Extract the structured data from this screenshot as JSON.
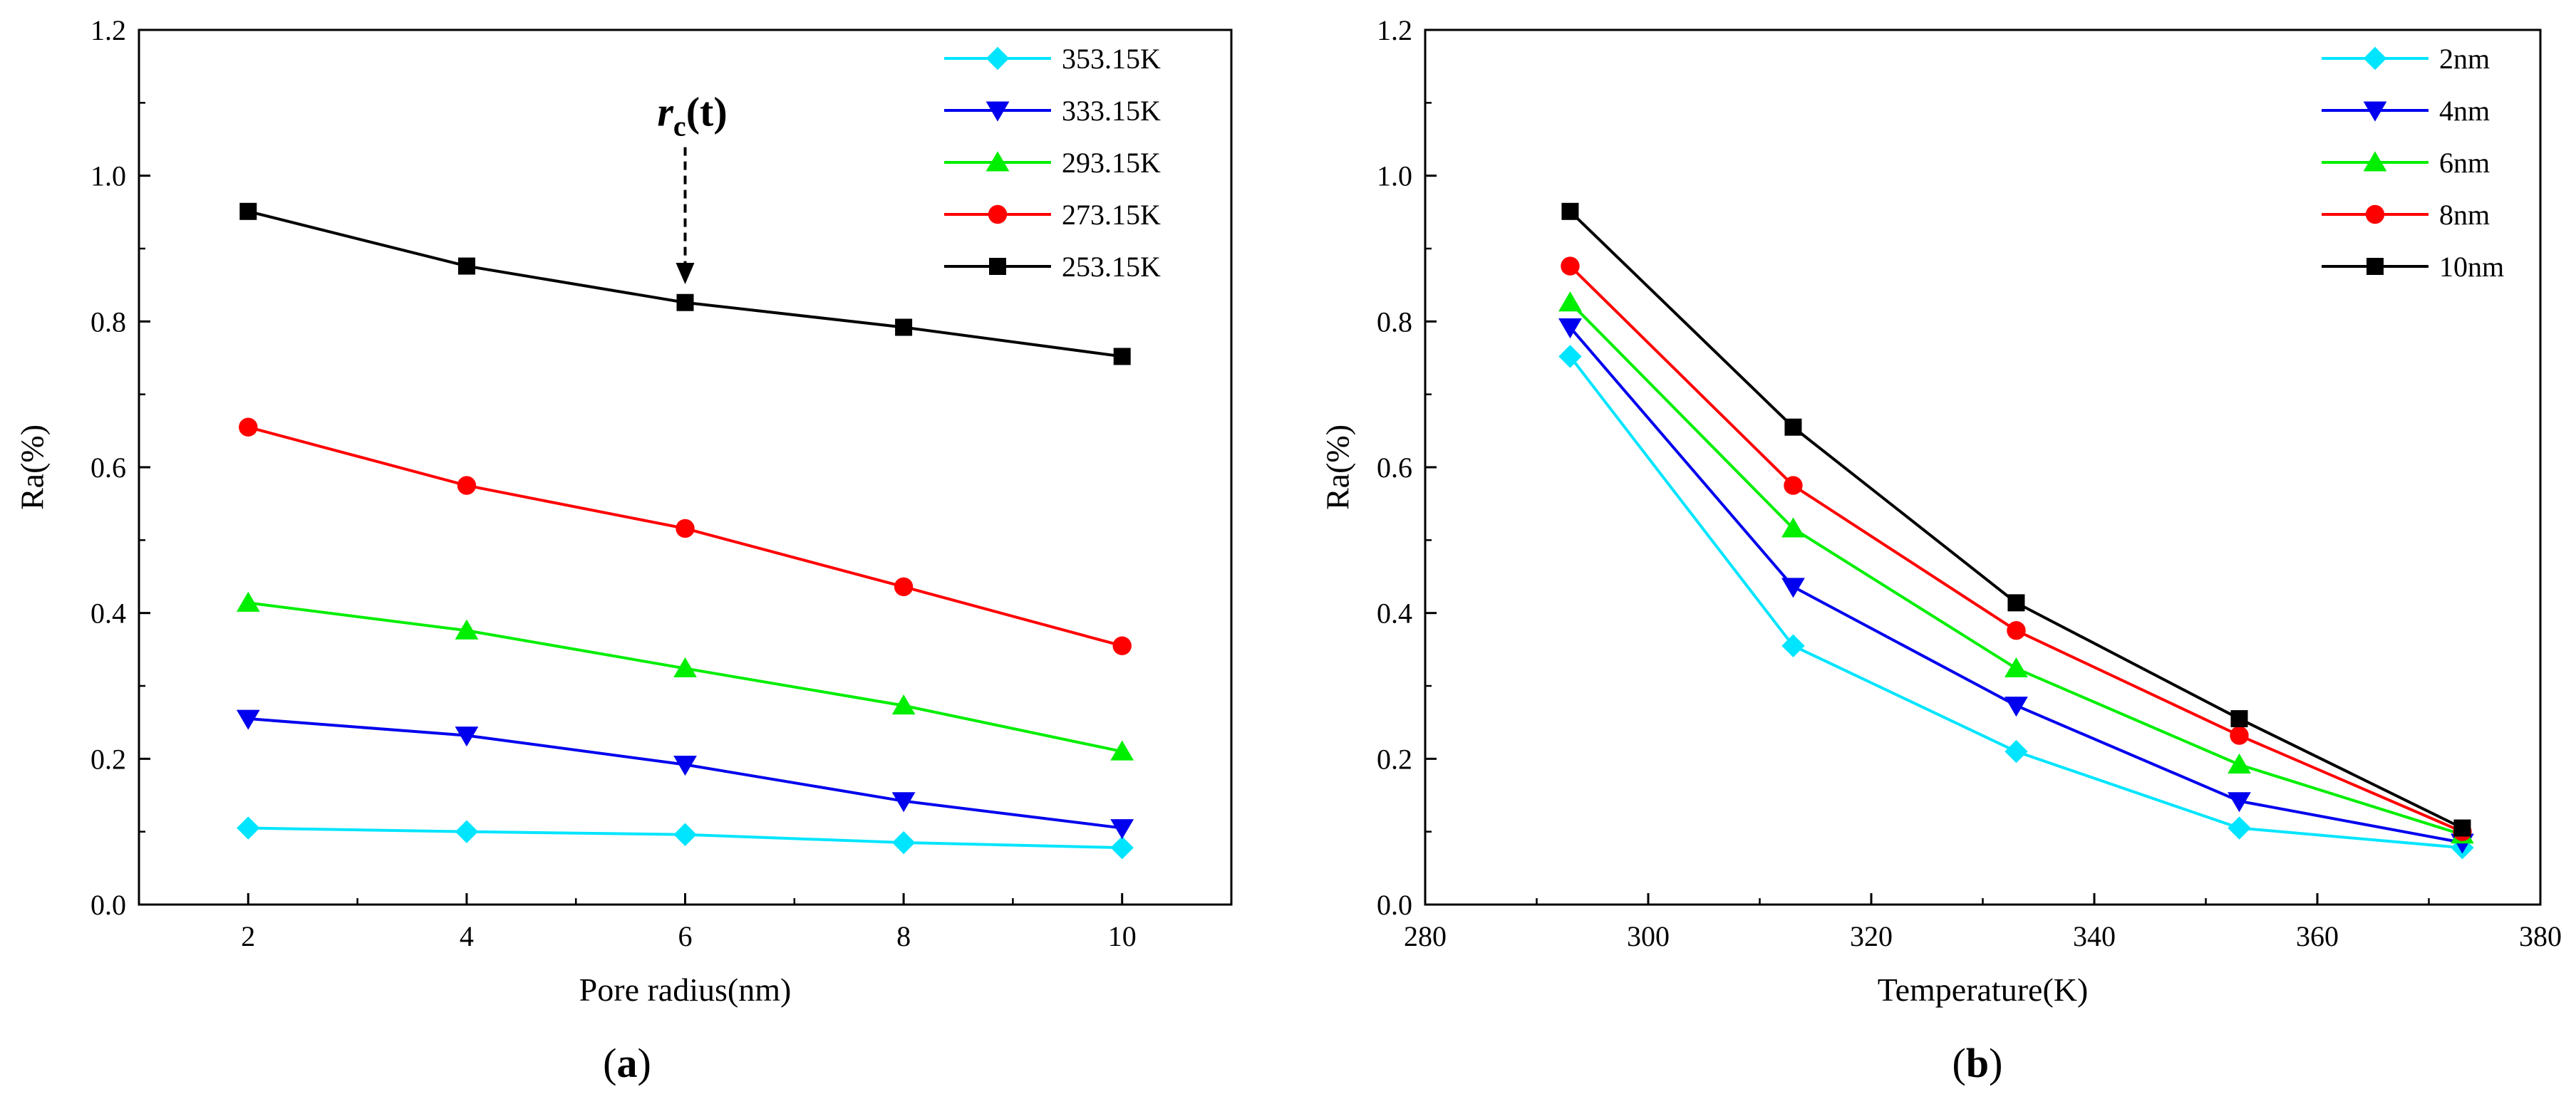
{
  "chart_data": [
    {
      "type": "line",
      "panel_label": "a",
      "xlabel": "Pore radius(nm)",
      "ylabel": "Ra(%)",
      "xlim": [
        1,
        11
      ],
      "ylim": [
        0,
        1.2
      ],
      "xticks": [
        2,
        4,
        6,
        8,
        10
      ],
      "yticks": [
        0.0,
        0.2,
        0.4,
        0.6,
        0.8,
        1.0,
        1.2
      ],
      "x": [
        2,
        4,
        6,
        8,
        10
      ],
      "legend_position": "top-right",
      "series": [
        {
          "name": "353.15K",
          "color": "#00e5ff",
          "marker": "diamond",
          "values": [
            0.105,
            0.1,
            0.096,
            0.085,
            0.078
          ]
        },
        {
          "name": "333.15K",
          "color": "#0000ee",
          "marker": "triangle-down",
          "values": [
            0.255,
            0.232,
            0.192,
            0.142,
            0.105
          ]
        },
        {
          "name": "293.15K",
          "color": "#00ee00",
          "marker": "triangle-up",
          "values": [
            0.414,
            0.376,
            0.324,
            0.273,
            0.21
          ]
        },
        {
          "name": "273.15K",
          "color": "#ff0000",
          "marker": "circle",
          "values": [
            0.655,
            0.575,
            0.516,
            0.436,
            0.355
          ]
        },
        {
          "name": "253.15K",
          "color": "#000000",
          "marker": "square",
          "values": [
            0.951,
            0.876,
            0.826,
            0.792,
            0.752
          ]
        }
      ],
      "annotation": {
        "text_main": "r",
        "text_sub": "c",
        "text_rest": "(t)",
        "x": 6,
        "y_from": 1.0,
        "y_to": 0.855
      }
    },
    {
      "type": "line",
      "panel_label": "b",
      "xlabel": "Temperature(K)",
      "ylabel": "Ra(%)",
      "xlim": [
        280,
        380
      ],
      "ylim": [
        0,
        1.2
      ],
      "xticks": [
        280,
        300,
        320,
        340,
        360,
        380
      ],
      "yticks": [
        0.0,
        0.2,
        0.4,
        0.6,
        0.8,
        1.0,
        1.2
      ],
      "x": [
        293,
        313,
        333,
        353,
        373
      ],
      "legend_position": "top-right",
      "series": [
        {
          "name": "2nm",
          "color": "#00e5ff",
          "marker": "diamond",
          "values": [
            0.752,
            0.355,
            0.21,
            0.105,
            0.078
          ]
        },
        {
          "name": "4nm",
          "color": "#0000ee",
          "marker": "triangle-down",
          "values": [
            0.792,
            0.436,
            0.273,
            0.142,
            0.085
          ]
        },
        {
          "name": "6nm",
          "color": "#00ee00",
          "marker": "triangle-up",
          "values": [
            0.826,
            0.516,
            0.324,
            0.192,
            0.096
          ]
        },
        {
          "name": "8nm",
          "color": "#ff0000",
          "marker": "circle",
          "values": [
            0.876,
            0.575,
            0.376,
            0.232,
            0.1
          ]
        },
        {
          "name": "10nm",
          "color": "#000000",
          "marker": "square",
          "values": [
            0.951,
            0.655,
            0.414,
            0.255,
            0.105
          ]
        }
      ]
    }
  ]
}
